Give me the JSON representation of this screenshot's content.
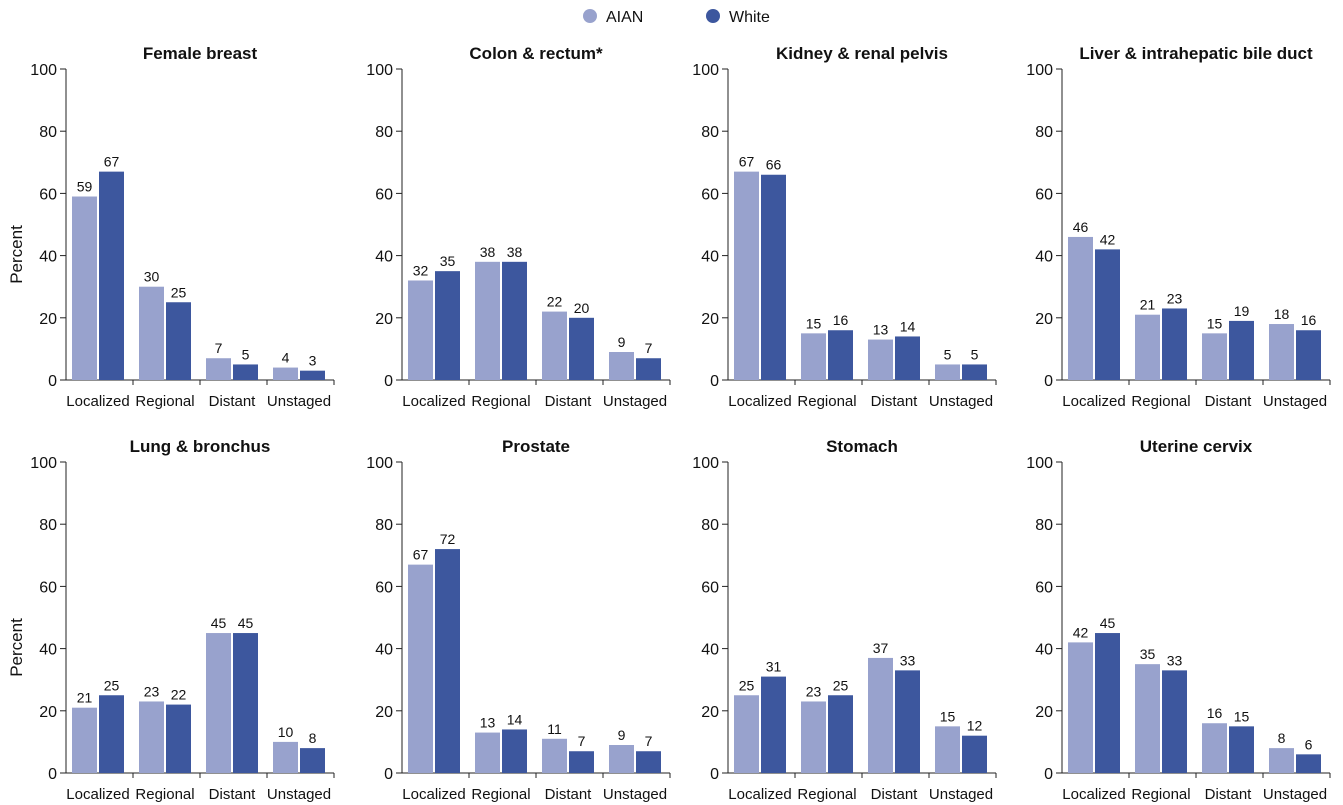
{
  "colors": {
    "aian": "#98a2cd",
    "white": "#3d579e",
    "axis": "#222222",
    "text": "#111111"
  },
  "legend": [
    {
      "label": "AIAN",
      "color": "#98a2cd"
    },
    {
      "label": "White",
      "color": "#3d579e"
    }
  ],
  "chart_data": [
    {
      "type": "bar",
      "title": "Female breast",
      "ylabel": "Percent",
      "ylim": [
        0,
        100
      ],
      "yticks": [
        0,
        20,
        40,
        60,
        80,
        100
      ],
      "categories": [
        "Localized",
        "Regional",
        "Distant",
        "Unstaged"
      ],
      "series": [
        {
          "name": "AIAN",
          "values": [
            59,
            30,
            7,
            4
          ]
        },
        {
          "name": "White",
          "values": [
            67,
            25,
            5,
            3
          ]
        }
      ]
    },
    {
      "type": "bar",
      "title": "Colon & rectum*",
      "ylabel": "",
      "ylim": [
        0,
        100
      ],
      "yticks": [
        0,
        20,
        40,
        60,
        80,
        100
      ],
      "categories": [
        "Localized",
        "Regional",
        "Distant",
        "Unstaged"
      ],
      "series": [
        {
          "name": "AIAN",
          "values": [
            32,
            38,
            22,
            9
          ]
        },
        {
          "name": "White",
          "values": [
            35,
            38,
            20,
            7
          ]
        }
      ]
    },
    {
      "type": "bar",
      "title": "Kidney & renal pelvis",
      "ylabel": "",
      "ylim": [
        0,
        100
      ],
      "yticks": [
        0,
        20,
        40,
        60,
        80,
        100
      ],
      "categories": [
        "Localized",
        "Regional",
        "Distant",
        "Unstaged"
      ],
      "series": [
        {
          "name": "AIAN",
          "values": [
            67,
            15,
            13,
            5
          ]
        },
        {
          "name": "White",
          "values": [
            66,
            16,
            14,
            5
          ]
        }
      ]
    },
    {
      "type": "bar",
      "title": "Liver & intrahepatic bile duct",
      "ylabel": "",
      "ylim": [
        0,
        100
      ],
      "yticks": [
        0,
        20,
        40,
        60,
        80,
        100
      ],
      "categories": [
        "Localized",
        "Regional",
        "Distant",
        "Unstaged"
      ],
      "series": [
        {
          "name": "AIAN",
          "values": [
            46,
            21,
            15,
            18
          ]
        },
        {
          "name": "White",
          "values": [
            42,
            23,
            19,
            16
          ]
        }
      ]
    },
    {
      "type": "bar",
      "title": "Lung & bronchus",
      "ylabel": "Percent",
      "ylim": [
        0,
        100
      ],
      "yticks": [
        0,
        20,
        40,
        60,
        80,
        100
      ],
      "categories": [
        "Localized",
        "Regional",
        "Distant",
        "Unstaged"
      ],
      "series": [
        {
          "name": "AIAN",
          "values": [
            21,
            23,
            45,
            10
          ]
        },
        {
          "name": "White",
          "values": [
            25,
            22,
            45,
            8
          ]
        }
      ]
    },
    {
      "type": "bar",
      "title": "Prostate",
      "ylabel": "",
      "ylim": [
        0,
        100
      ],
      "yticks": [
        0,
        20,
        40,
        60,
        80,
        100
      ],
      "categories": [
        "Localized",
        "Regional",
        "Distant",
        "Unstaged"
      ],
      "series": [
        {
          "name": "AIAN",
          "values": [
            67,
            13,
            11,
            9
          ]
        },
        {
          "name": "White",
          "values": [
            72,
            14,
            7,
            7
          ]
        }
      ]
    },
    {
      "type": "bar",
      "title": "Stomach",
      "ylabel": "",
      "ylim": [
        0,
        100
      ],
      "yticks": [
        0,
        20,
        40,
        60,
        80,
        100
      ],
      "categories": [
        "Localized",
        "Regional",
        "Distant",
        "Unstaged"
      ],
      "series": [
        {
          "name": "AIAN",
          "values": [
            25,
            23,
            37,
            15
          ]
        },
        {
          "name": "White",
          "values": [
            31,
            25,
            33,
            12
          ]
        }
      ]
    },
    {
      "type": "bar",
      "title": "Uterine cervix",
      "ylabel": "",
      "ylim": [
        0,
        100
      ],
      "yticks": [
        0,
        20,
        40,
        60,
        80,
        100
      ],
      "categories": [
        "Localized",
        "Regional",
        "Distant",
        "Unstaged"
      ],
      "series": [
        {
          "name": "AIAN",
          "values": [
            42,
            35,
            16,
            8
          ]
        },
        {
          "name": "White",
          "values": [
            45,
            33,
            15,
            6
          ]
        }
      ]
    }
  ]
}
